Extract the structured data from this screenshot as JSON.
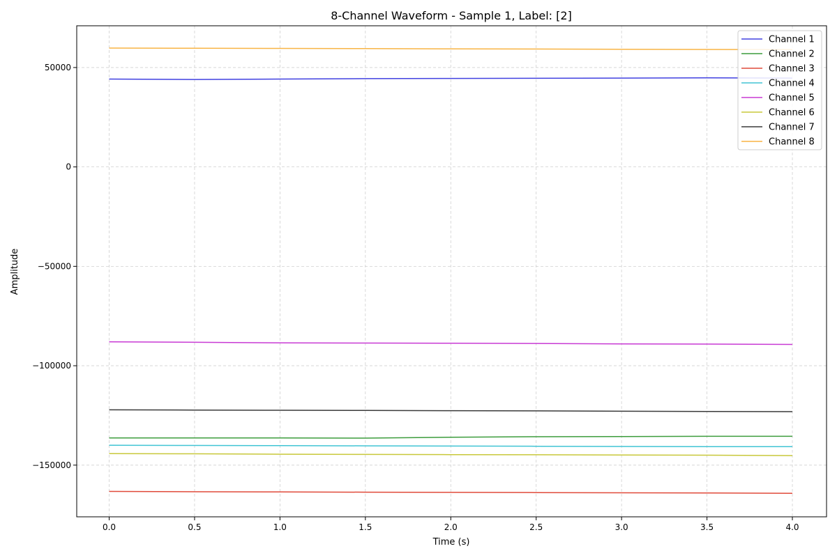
{
  "chart_data": {
    "type": "line",
    "title": "8-Channel Waveform - Sample 1, Label: [2]",
    "xlabel": "Time (s)",
    "ylabel": "Amplitude",
    "xlim": [
      -0.19,
      4.2
    ],
    "ylim": [
      -176000,
      71000
    ],
    "xticks": [
      0.0,
      0.5,
      1.0,
      1.5,
      2.0,
      2.5,
      3.0,
      3.5,
      4.0
    ],
    "xtick_labels": [
      "0.0",
      "0.5",
      "1.0",
      "1.5",
      "2.0",
      "2.5",
      "3.0",
      "3.5",
      "4.0"
    ],
    "yticks": [
      -150000,
      -100000,
      -50000,
      0,
      50000
    ],
    "ytick_labels": [
      "−150000",
      "−100000",
      "−50000",
      "0",
      "50000"
    ],
    "grid": true,
    "legend_position": "top-right",
    "x": [
      0.0,
      0.5,
      1.0,
      1.5,
      2.0,
      2.5,
      3.0,
      3.5,
      4.0
    ],
    "series": [
      {
        "name": "Channel 1",
        "color": "#4040e0",
        "values": [
          44200,
          44000,
          44200,
          44400,
          44500,
          44600,
          44700,
          44800,
          44700
        ]
      },
      {
        "name": "Channel 2",
        "color": "#3c9c3c",
        "values": [
          -136300,
          -136300,
          -136300,
          -136400,
          -136000,
          -135700,
          -135600,
          -135500,
          -135500
        ]
      },
      {
        "name": "Channel 3",
        "color": "#e04a3a",
        "values": [
          -163200,
          -163400,
          -163500,
          -163600,
          -163700,
          -163800,
          -163900,
          -164000,
          -164200
        ]
      },
      {
        "name": "Channel 4",
        "color": "#40c4d4",
        "values": [
          -140000,
          -140100,
          -140200,
          -140300,
          -140400,
          -140500,
          -140600,
          -140700,
          -140700
        ]
      },
      {
        "name": "Channel 5",
        "color": "#c83ad4",
        "values": [
          -88000,
          -88200,
          -88500,
          -88600,
          -88700,
          -88800,
          -89000,
          -89100,
          -89300
        ]
      },
      {
        "name": "Channel 6",
        "color": "#c8c83a",
        "values": [
          -144200,
          -144300,
          -144500,
          -144600,
          -144700,
          -144800,
          -144900,
          -145000,
          -145200
        ]
      },
      {
        "name": "Channel 7",
        "color": "#3a3a3a",
        "values": [
          -122200,
          -122300,
          -122400,
          -122500,
          -122600,
          -122700,
          -122900,
          -123000,
          -123100
        ]
      },
      {
        "name": "Channel 8",
        "color": "#f8b444",
        "values": [
          59800,
          59700,
          59600,
          59500,
          59400,
          59300,
          59200,
          59100,
          59000
        ]
      }
    ]
  }
}
